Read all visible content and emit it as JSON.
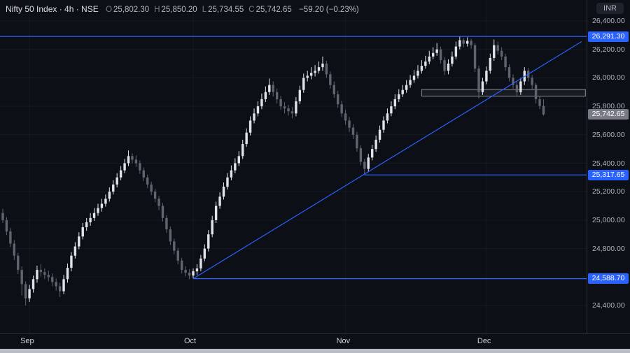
{
  "header": {
    "title": "Nifty 50 Index · 4h · NSE",
    "ohlc": [
      {
        "label": "O",
        "value": "25,802.30"
      },
      {
        "label": "H",
        "value": "25,850.20"
      },
      {
        "label": "L",
        "value": "25,734.55"
      },
      {
        "label": "C",
        "value": "25,742.65"
      }
    ],
    "change": "−59.20 (−0.23%)"
  },
  "currency_badge": "INR",
  "chart_data": {
    "type": "candlestick",
    "title": "Nifty 50 Index",
    "interval": "4h",
    "exchange": "NSE",
    "legend_position": "top-left",
    "grid": true,
    "colors": {
      "background": "#0d0f17",
      "up": "#e0e3ea",
      "down": "#60646e",
      "drawing": "#2962ff",
      "last_price_badge": "#787b86",
      "range_box_stroke": "#8b8e97"
    },
    "y_axis": {
      "min": 24350,
      "max": 26450,
      "tick_values": [
        26400,
        26200,
        26000,
        25800,
        25600,
        25400,
        25200,
        25000,
        24800,
        24600,
        24400
      ],
      "tick_labels": [
        "26,400.00",
        "26,200.00",
        "26,000.00",
        "25,800.00",
        "25,600.00",
        "25,400.00",
        "25,200.00",
        "25,000.00",
        "24,800.00",
        "24,600.00",
        "24,400.00"
      ]
    },
    "x_axis": {
      "labels": [
        {
          "text": "Sep",
          "index": 7
        },
        {
          "text": "Oct",
          "index": 50
        },
        {
          "text": "Nov",
          "index": 90
        },
        {
          "text": "Dec",
          "index": 127
        }
      ]
    },
    "price_lines": [
      {
        "price": 26291.3,
        "label": "26,291.30",
        "full_width": true
      },
      {
        "price": 25317.65,
        "label": "25,317.65",
        "from_index": 95
      },
      {
        "price": 24588.7,
        "label": "24,588.70",
        "from_index": 50
      }
    ],
    "trendline": {
      "from": {
        "index": 50,
        "price": 24588.7
      },
      "to": {
        "index": 152,
        "price": 26255
      }
    },
    "range_box": {
      "from_index": 110,
      "to_index": 153,
      "price_top": 25918,
      "price_bottom": 25872
    },
    "last_price": {
      "value": 25742.65,
      "label": "25,742.65"
    },
    "candles": [
      [
        25050,
        25080,
        24980,
        25000
      ],
      [
        25000,
        25020,
        24895,
        24920
      ],
      [
        24920,
        24945,
        24810,
        24835
      ],
      [
        24835,
        24860,
        24720,
        24750
      ],
      [
        24750,
        24770,
        24620,
        24650
      ],
      [
        24650,
        24675,
        24470,
        24550
      ],
      [
        24550,
        24570,
        24400,
        24450
      ],
      [
        24450,
        24545,
        24425,
        24515
      ],
      [
        24515,
        24610,
        24490,
        24585
      ],
      [
        24585,
        24680,
        24560,
        24650
      ],
      [
        24650,
        24690,
        24605,
        24635
      ],
      [
        24635,
        24660,
        24585,
        24615
      ],
      [
        24615,
        24645,
        24570,
        24600
      ],
      [
        24600,
        24625,
        24535,
        24565
      ],
      [
        24565,
        24590,
        24505,
        24535
      ],
      [
        24535,
        24560,
        24460,
        24500
      ],
      [
        24500,
        24615,
        24480,
        24585
      ],
      [
        24585,
        24695,
        24560,
        24665
      ],
      [
        24665,
        24775,
        24640,
        24750
      ],
      [
        24750,
        24845,
        24730,
        24815
      ],
      [
        24815,
        24915,
        24795,
        24885
      ],
      [
        24885,
        24980,
        24865,
        24950
      ],
      [
        24950,
        25015,
        24925,
        24985
      ],
      [
        24985,
        25050,
        24960,
        25015
      ],
      [
        25015,
        25085,
        24995,
        25050
      ],
      [
        25050,
        25115,
        25030,
        25085
      ],
      [
        25085,
        25150,
        25060,
        25115
      ],
      [
        25115,
        25180,
        25095,
        25150
      ],
      [
        25150,
        25230,
        25130,
        25200
      ],
      [
        25200,
        25280,
        25180,
        25250
      ],
      [
        25250,
        25330,
        25230,
        25300
      ],
      [
        25300,
        25380,
        25280,
        25350
      ],
      [
        25350,
        25430,
        25330,
        25400
      ],
      [
        25400,
        25490,
        25380,
        25450
      ],
      [
        25450,
        25470,
        25400,
        25425
      ],
      [
        25425,
        25455,
        25375,
        25400
      ],
      [
        25400,
        25420,
        25325,
        25350
      ],
      [
        25350,
        25370,
        25275,
        25300
      ],
      [
        25300,
        25320,
        25225,
        25250
      ],
      [
        25250,
        25270,
        25175,
        25200
      ],
      [
        25200,
        25220,
        25125,
        25150
      ],
      [
        25150,
        25170,
        25070,
        25100
      ],
      [
        25100,
        25120,
        24990,
        25015
      ],
      [
        25015,
        25035,
        24910,
        24935
      ],
      [
        24935,
        24955,
        24825,
        24850
      ],
      [
        24850,
        24870,
        24760,
        24785
      ],
      [
        24785,
        24805,
        24690,
        24715
      ],
      [
        24715,
        24735,
        24625,
        24650
      ],
      [
        24650,
        24675,
        24605,
        24630
      ],
      [
        24630,
        24655,
        24585,
        24610
      ],
      [
        24610,
        24660,
        24588.7,
        24640
      ],
      [
        24640,
        24690,
        24615,
        24660
      ],
      [
        24660,
        24755,
        24640,
        24730
      ],
      [
        24730,
        24830,
        24710,
        24800
      ],
      [
        24800,
        24930,
        24780,
        24900
      ],
      [
        24900,
        25030,
        24880,
        25000
      ],
      [
        25000,
        25130,
        24980,
        25100
      ],
      [
        25100,
        25195,
        25080,
        25165
      ],
      [
        25165,
        25265,
        25145,
        25235
      ],
      [
        25235,
        25330,
        25215,
        25300
      ],
      [
        25300,
        25385,
        25280,
        25350
      ],
      [
        25350,
        25435,
        25330,
        25400
      ],
      [
        25400,
        25485,
        25380,
        25450
      ],
      [
        25450,
        25565,
        25430,
        25535
      ],
      [
        25535,
        25645,
        25515,
        25615
      ],
      [
        25615,
        25730,
        25595,
        25700
      ],
      [
        25700,
        25785,
        25680,
        25750
      ],
      [
        25750,
        25835,
        25730,
        25800
      ],
      [
        25800,
        25890,
        25780,
        25850
      ],
      [
        25850,
        25940,
        25830,
        25900
      ],
      [
        25900,
        25995,
        25880,
        25950
      ],
      [
        25950,
        25975,
        25870,
        25900
      ],
      [
        25900,
        25925,
        25820,
        25850
      ],
      [
        25850,
        25875,
        25775,
        25800
      ],
      [
        25800,
        25830,
        25750,
        25785
      ],
      [
        25785,
        25810,
        25735,
        25765
      ],
      [
        25765,
        25795,
        25715,
        25750
      ],
      [
        25750,
        25865,
        25730,
        25835
      ],
      [
        25835,
        25945,
        25815,
        25915
      ],
      [
        25915,
        26030,
        25895,
        26000
      ],
      [
        26000,
        26050,
        25975,
        26015
      ],
      [
        26015,
        26075,
        25990,
        26035
      ],
      [
        26035,
        26090,
        26010,
        26050
      ],
      [
        26050,
        26115,
        26030,
        26075
      ],
      [
        26075,
        26150,
        26050,
        26100
      ],
      [
        26100,
        26120,
        26000,
        26025
      ],
      [
        26025,
        26045,
        25925,
        25950
      ],
      [
        25950,
        25975,
        25860,
        25885
      ],
      [
        25885,
        25910,
        25790,
        25815
      ],
      [
        25815,
        25840,
        25725,
        25750
      ],
      [
        25750,
        25775,
        25670,
        25700
      ],
      [
        25700,
        25725,
        25620,
        25650
      ],
      [
        25650,
        25675,
        25570,
        25600
      ],
      [
        25600,
        25620,
        25480,
        25505
      ],
      [
        25505,
        25525,
        25385,
        25410
      ],
      [
        25410,
        25430,
        25317.65,
        25360
      ],
      [
        25360,
        25465,
        25340,
        25440
      ],
      [
        25440,
        25530,
        25420,
        25500
      ],
      [
        25500,
        25595,
        25480,
        25565
      ],
      [
        25565,
        25665,
        25545,
        25635
      ],
      [
        25635,
        25730,
        25615,
        25700
      ],
      [
        25700,
        25785,
        25680,
        25750
      ],
      [
        25750,
        25835,
        25730,
        25800
      ],
      [
        25800,
        25885,
        25780,
        25850
      ],
      [
        25850,
        25920,
        25830,
        25885
      ],
      [
        25885,
        25950,
        25865,
        25915
      ],
      [
        25915,
        25985,
        25895,
        25950
      ],
      [
        25950,
        26020,
        25930,
        25985
      ],
      [
        25985,
        26055,
        25965,
        26015
      ],
      [
        26015,
        26090,
        25995,
        26050
      ],
      [
        26050,
        26125,
        26030,
        26085
      ],
      [
        26085,
        26155,
        26065,
        26115
      ],
      [
        26115,
        26190,
        26095,
        26150
      ],
      [
        26150,
        26215,
        26130,
        26175
      ],
      [
        26175,
        26245,
        26155,
        26200
      ],
      [
        26200,
        26220,
        26100,
        26125
      ],
      [
        26125,
        26145,
        26020,
        26050
      ],
      [
        26050,
        26130,
        26025,
        26100
      ],
      [
        26100,
        26185,
        26080,
        26150
      ],
      [
        26150,
        26255,
        26130,
        26220
      ],
      [
        26220,
        26291.3,
        26200,
        26265
      ],
      [
        26265,
        26280,
        26215,
        26240
      ],
      [
        26240,
        26285,
        26220,
        26260
      ],
      [
        26260,
        26275,
        26205,
        26230
      ],
      [
        26230,
        26245,
        26040,
        26065
      ],
      [
        26065,
        26085,
        25855,
        25900
      ],
      [
        25900,
        26000,
        25880,
        25975
      ],
      [
        25975,
        26080,
        25955,
        26050
      ],
      [
        26050,
        26170,
        26030,
        26140
      ],
      [
        26140,
        26270,
        26120,
        26230
      ],
      [
        26230,
        26255,
        26165,
        26190
      ],
      [
        26190,
        26215,
        26125,
        26150
      ],
      [
        26150,
        26170,
        26050,
        26075
      ],
      [
        26075,
        26095,
        25975,
        26000
      ],
      [
        26000,
        26025,
        25925,
        25950
      ],
      [
        25950,
        25975,
        25875,
        25900
      ],
      [
        25900,
        26000,
        25880,
        25975
      ],
      [
        25975,
        26075,
        25950,
        26050
      ],
      [
        26050,
        26070,
        25975,
        26000
      ],
      [
        26000,
        26020,
        25920,
        25950
      ],
      [
        25950,
        25965,
        25820,
        25850
      ],
      [
        25850,
        25870,
        25780,
        25802.3
      ],
      [
        25802.3,
        25850.2,
        25734.55,
        25742.65
      ]
    ]
  }
}
